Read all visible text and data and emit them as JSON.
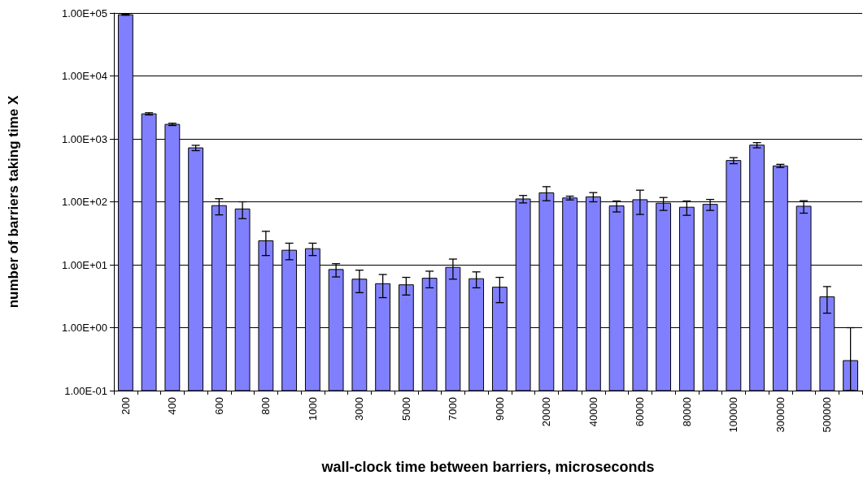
{
  "chart_data": {
    "type": "bar",
    "xlabel": "wall-clock time between barriers, microseconds",
    "ylabel": "number of barriers taking time X",
    "categories": [
      "200",
      null,
      "400",
      null,
      "600",
      null,
      "800",
      null,
      "1000",
      null,
      "3000",
      null,
      "5000",
      null,
      "7000",
      null,
      "9000",
      null,
      "20000",
      null,
      "40000",
      null,
      "60000",
      null,
      "80000",
      null,
      "100000",
      null,
      "300000",
      null,
      "500000",
      null
    ],
    "values": [
      94000,
      2500,
      1700,
      720,
      87,
      77,
      24,
      17,
      18,
      8.4,
      5.9,
      5.0,
      4.8,
      6.1,
      9.1,
      6.0,
      4.4,
      111,
      139,
      115,
      120,
      86,
      108,
      95,
      82,
      91,
      453,
      796,
      372,
      85,
      3.1,
      0.3
    ],
    "errors": [
      2000,
      100,
      70,
      70,
      25,
      23,
      10,
      5,
      4,
      2,
      2.3,
      2,
      1.5,
      1.8,
      3.2,
      1.7,
      1.9,
      15,
      35,
      8,
      20,
      17,
      45,
      22,
      21,
      18,
      50,
      75,
      22,
      19,
      1.4,
      [
        0.1,
        1
      ]
    ],
    "color": "#8080ff",
    "log": "y",
    "ylim": [
      0.1,
      100000
    ],
    "yticks": [
      {
        "value": 0.1,
        "label": "1.00E-01"
      },
      {
        "value": 1,
        "label": "1.00E+00"
      },
      {
        "value": 10,
        "label": "1.00E+01"
      },
      {
        "value": 100,
        "label": "1.00E+02"
      },
      {
        "value": 1000,
        "label": "1.00E+03"
      },
      {
        "value": 10000,
        "label": "1.00E+04"
      },
      {
        "value": 100000,
        "label": "1.00E+05"
      }
    ],
    "grid": "y"
  }
}
